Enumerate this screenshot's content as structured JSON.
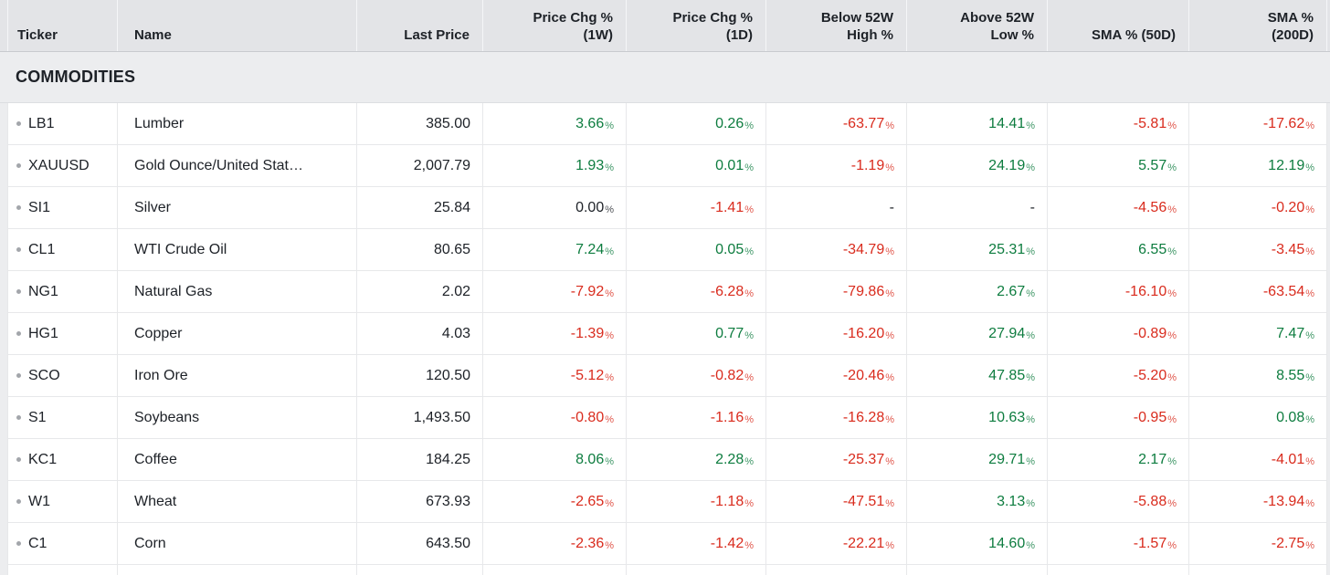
{
  "colors": {
    "positive": "#0d7c3f",
    "negative": "#d92b1d",
    "neutral": "#1d2127"
  },
  "table": {
    "section_title": "COMMODITIES",
    "columns": [
      {
        "id": "ticker",
        "line1": "Ticker",
        "line2": "",
        "align": "left"
      },
      {
        "id": "name",
        "line1": "Name",
        "line2": "",
        "align": "left"
      },
      {
        "id": "last-price",
        "line1": "Last Price",
        "line2": "",
        "align": "right"
      },
      {
        "id": "price-chg-1w",
        "line1": "Price Chg %",
        "line2": "(1W)",
        "align": "right"
      },
      {
        "id": "price-chg-1d",
        "line1": "Price Chg %",
        "line2": "(1D)",
        "align": "right"
      },
      {
        "id": "below-52w-high",
        "line1": "Below 52W",
        "line2": "High %",
        "align": "right"
      },
      {
        "id": "above-52w-low",
        "line1": "Above 52W",
        "line2": "Low %",
        "align": "right"
      },
      {
        "id": "sma-50d",
        "line1": "SMA % (50D)",
        "line2": "",
        "align": "right"
      },
      {
        "id": "sma-200d",
        "line1": "SMA %",
        "line2": "(200D)",
        "align": "right"
      }
    ],
    "rows": [
      {
        "ticker": "LB1",
        "name": "Lumber",
        "last_price": "385.00",
        "cells": [
          {
            "v": "3.66",
            "s": "%",
            "dir": "up"
          },
          {
            "v": "0.26",
            "s": "%",
            "dir": "up"
          },
          {
            "v": "-63.77",
            "s": "%",
            "dir": "down"
          },
          {
            "v": "14.41",
            "s": "%",
            "dir": "up"
          },
          {
            "v": "-5.81",
            "s": "%",
            "dir": "down"
          },
          {
            "v": "-17.62",
            "s": "%",
            "dir": "down"
          }
        ]
      },
      {
        "ticker": "XAUUSD",
        "name": "Gold Ounce/United Stat…",
        "last_price": "2,007.79",
        "cells": [
          {
            "v": "1.93",
            "s": "%",
            "dir": "up"
          },
          {
            "v": "0.01",
            "s": "%",
            "dir": "up"
          },
          {
            "v": "-1.19",
            "s": "%",
            "dir": "down"
          },
          {
            "v": "24.19",
            "s": "%",
            "dir": "up"
          },
          {
            "v": "5.57",
            "s": "%",
            "dir": "up"
          },
          {
            "v": "12.19",
            "s": "%",
            "dir": "up"
          }
        ]
      },
      {
        "ticker": "SI1",
        "name": "Silver",
        "last_price": "25.84",
        "cells": [
          {
            "v": "0.00",
            "s": "%",
            "dir": "neutral"
          },
          {
            "v": "-1.41",
            "s": "%",
            "dir": "down"
          },
          {
            "v": "-",
            "s": "",
            "dir": "neutral"
          },
          {
            "v": "-",
            "s": "",
            "dir": "neutral"
          },
          {
            "v": "-4.56",
            "s": "%",
            "dir": "down"
          },
          {
            "v": "-0.20",
            "s": "%",
            "dir": "down"
          }
        ]
      },
      {
        "ticker": "CL1",
        "name": "WTI Crude Oil",
        "last_price": "80.65",
        "cells": [
          {
            "v": "7.24",
            "s": "%",
            "dir": "up"
          },
          {
            "v": "0.05",
            "s": "%",
            "dir": "up"
          },
          {
            "v": "-34.79",
            "s": "%",
            "dir": "down"
          },
          {
            "v": "25.31",
            "s": "%",
            "dir": "up"
          },
          {
            "v": "6.55",
            "s": "%",
            "dir": "up"
          },
          {
            "v": "-3.45",
            "s": "%",
            "dir": "down"
          }
        ]
      },
      {
        "ticker": "NG1",
        "name": "Natural Gas",
        "last_price": "2.02",
        "cells": [
          {
            "v": "-7.92",
            "s": "%",
            "dir": "down"
          },
          {
            "v": "-6.28",
            "s": "%",
            "dir": "down"
          },
          {
            "v": "-79.86",
            "s": "%",
            "dir": "down"
          },
          {
            "v": "2.67",
            "s": "%",
            "dir": "up"
          },
          {
            "v": "-16.10",
            "s": "%",
            "dir": "down"
          },
          {
            "v": "-63.54",
            "s": "%",
            "dir": "down"
          }
        ]
      },
      {
        "ticker": "HG1",
        "name": "Copper",
        "last_price": "4.03",
        "cells": [
          {
            "v": "-1.39",
            "s": "%",
            "dir": "down"
          },
          {
            "v": "0.77",
            "s": "%",
            "dir": "up"
          },
          {
            "v": "-16.20",
            "s": "%",
            "dir": "down"
          },
          {
            "v": "27.94",
            "s": "%",
            "dir": "up"
          },
          {
            "v": "-0.89",
            "s": "%",
            "dir": "down"
          },
          {
            "v": "7.47",
            "s": "%",
            "dir": "up"
          }
        ]
      },
      {
        "ticker": "SCO",
        "name": "Iron Ore",
        "last_price": "120.50",
        "cells": [
          {
            "v": "-5.12",
            "s": "%",
            "dir": "down"
          },
          {
            "v": "-0.82",
            "s": "%",
            "dir": "down"
          },
          {
            "v": "-20.46",
            "s": "%",
            "dir": "down"
          },
          {
            "v": "47.85",
            "s": "%",
            "dir": "up"
          },
          {
            "v": "-5.20",
            "s": "%",
            "dir": "down"
          },
          {
            "v": "8.55",
            "s": "%",
            "dir": "up"
          }
        ]
      },
      {
        "ticker": "S1",
        "name": "Soybeans",
        "last_price": "1,493.50",
        "cells": [
          {
            "v": "-0.80",
            "s": "%",
            "dir": "down"
          },
          {
            "v": "-1.16",
            "s": "%",
            "dir": "down"
          },
          {
            "v": "-16.28",
            "s": "%",
            "dir": "down"
          },
          {
            "v": "10.63",
            "s": "%",
            "dir": "up"
          },
          {
            "v": "-0.95",
            "s": "%",
            "dir": "down"
          },
          {
            "v": "0.08",
            "s": "%",
            "dir": "up"
          }
        ]
      },
      {
        "ticker": "KC1",
        "name": "Coffee",
        "last_price": "184.25",
        "cells": [
          {
            "v": "8.06",
            "s": "%",
            "dir": "up"
          },
          {
            "v": "2.28",
            "s": "%",
            "dir": "up"
          },
          {
            "v": "-25.37",
            "s": "%",
            "dir": "down"
          },
          {
            "v": "29.71",
            "s": "%",
            "dir": "up"
          },
          {
            "v": "2.17",
            "s": "%",
            "dir": "up"
          },
          {
            "v": "-4.01",
            "s": "%",
            "dir": "down"
          }
        ]
      },
      {
        "ticker": "W1",
        "name": "Wheat",
        "last_price": "673.93",
        "cells": [
          {
            "v": "-2.65",
            "s": "%",
            "dir": "down"
          },
          {
            "v": "-1.18",
            "s": "%",
            "dir": "down"
          },
          {
            "v": "-47.51",
            "s": "%",
            "dir": "down"
          },
          {
            "v": "3.13",
            "s": "%",
            "dir": "up"
          },
          {
            "v": "-5.88",
            "s": "%",
            "dir": "down"
          },
          {
            "v": "-13.94",
            "s": "%",
            "dir": "down"
          }
        ]
      },
      {
        "ticker": "C1",
        "name": "Corn",
        "last_price": "643.50",
        "cells": [
          {
            "v": "-2.36",
            "s": "%",
            "dir": "down"
          },
          {
            "v": "-1.42",
            "s": "%",
            "dir": "down"
          },
          {
            "v": "-22.21",
            "s": "%",
            "dir": "down"
          },
          {
            "v": "14.60",
            "s": "%",
            "dir": "up"
          },
          {
            "v": "-1.57",
            "s": "%",
            "dir": "down"
          },
          {
            "v": "-2.75",
            "s": "%",
            "dir": "down"
          }
        ]
      }
    ]
  }
}
